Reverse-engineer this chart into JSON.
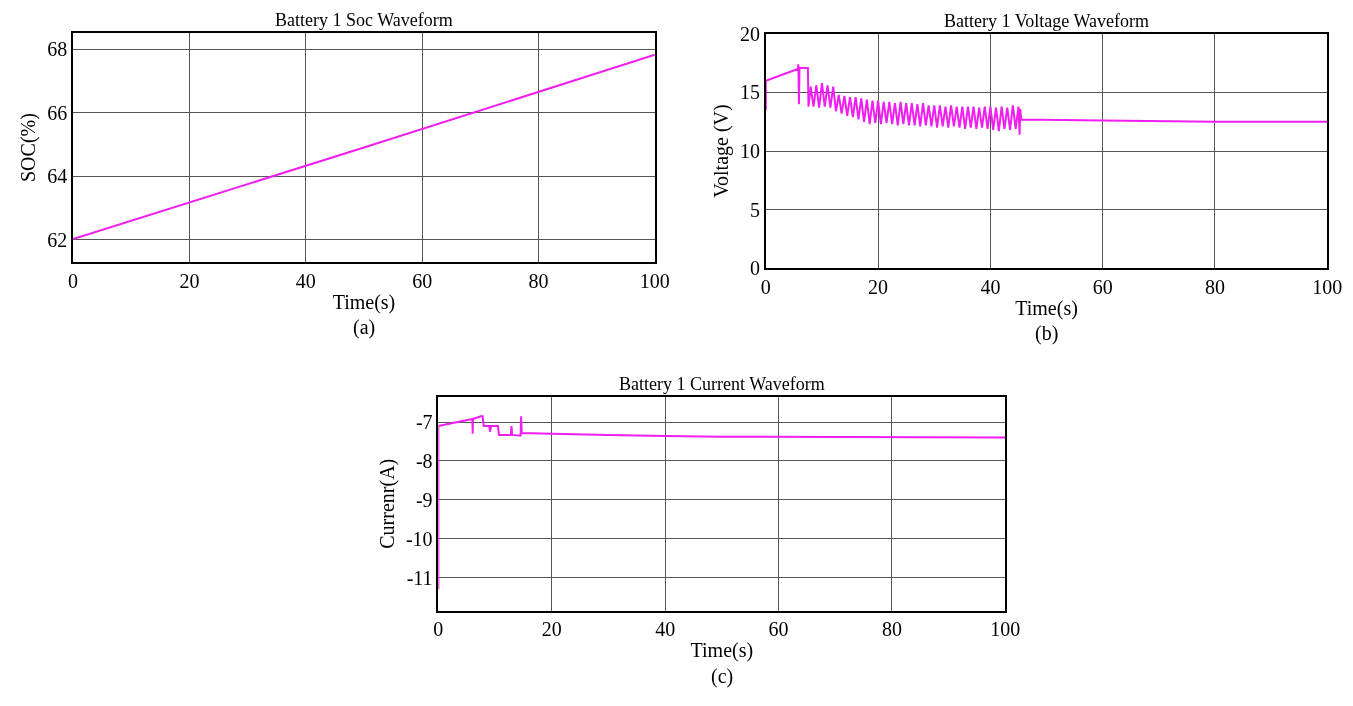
{
  "chart_data": [
    {
      "type": "line",
      "title": "Battery 1 Soc Waveform",
      "xlabel": "Time(s)",
      "ylabel": "SOC(%)",
      "annotations": [
        "(a)"
      ],
      "color": "#f01ef0",
      "x": [
        0,
        50,
        100
      ],
      "values": [
        62.02,
        64.9,
        67.82
      ],
      "xlim": [
        0,
        100
      ],
      "xticks": [
        0,
        20,
        40,
        60,
        80,
        100
      ],
      "ylim": [
        61.3,
        68.5
      ],
      "yticks": [
        62,
        64,
        66,
        68
      ],
      "grid": true
    },
    {
      "type": "line",
      "title": "Battery 1 Voltage Waveform",
      "xlabel": "Time(s)",
      "ylabel": "Voltage (V)",
      "annotations": [
        "(b)"
      ],
      "color": "#f01ef0",
      "x": [
        0,
        0,
        5.7,
        5.8,
        5.9,
        6.0,
        7.5,
        7.6,
        8,
        8.5,
        9,
        9.5,
        10,
        10.5,
        11,
        11.5,
        12,
        12.5,
        13,
        13.5,
        14,
        14.5,
        15,
        15.5,
        16,
        16.5,
        17,
        17.5,
        18,
        18.5,
        19,
        19.5,
        20,
        20.5,
        21,
        21.5,
        22,
        22.5,
        23,
        23.5,
        24,
        24.5,
        25,
        25.5,
        26,
        26.5,
        27,
        27.5,
        28,
        28.5,
        29,
        29.5,
        30,
        30.5,
        31,
        31.5,
        32,
        32.5,
        33,
        33.5,
        34,
        34.5,
        35,
        35.5,
        36,
        36.5,
        37,
        37.5,
        38,
        38.5,
        39,
        39.5,
        40,
        40.5,
        41,
        41.5,
        42,
        42.5,
        43,
        43.5,
        44,
        44.5,
        45,
        45.2,
        45.3,
        45.5,
        60,
        80,
        100
      ],
      "values": [
        13.5,
        16,
        17.0,
        17.4,
        14.0,
        17.1,
        17.1,
        13.8,
        15.5,
        13.8,
        15.6,
        13.7,
        15.8,
        13.8,
        15.6,
        13.7,
        15.5,
        13.4,
        14.8,
        13.2,
        14.7,
        13.0,
        14.6,
        12.9,
        14.6,
        12.7,
        14.5,
        12.5,
        14.4,
        12.3,
        14.3,
        12.4,
        14.3,
        12.3,
        14.2,
        12.4,
        14.2,
        12.3,
        14.1,
        12.2,
        14.2,
        12.3,
        14.1,
        12.2,
        14.1,
        12.2,
        14.0,
        12.1,
        14.1,
        12.2,
        13.9,
        12.1,
        13.9,
        12.0,
        13.9,
        12.1,
        13.8,
        12.0,
        13.9,
        12.1,
        13.8,
        12.0,
        13.8,
        11.9,
        13.8,
        12.0,
        13.8,
        11.9,
        13.7,
        12.0,
        13.8,
        11.9,
        13.8,
        11.8,
        13.7,
        11.7,
        13.8,
        11.9,
        13.7,
        11.8,
        13.9,
        11.9,
        13.8,
        11.4,
        13.6,
        12.7,
        12.6,
        12.5,
        12.5
      ],
      "xlim": [
        0,
        100
      ],
      "xticks": [
        0,
        20,
        40,
        60,
        80,
        100
      ],
      "ylim": [
        0,
        20
      ],
      "yticks": [
        0,
        5,
        10,
        15,
        20
      ],
      "grid": true
    },
    {
      "type": "line",
      "title": "Battery 1 Current Waveform",
      "xlabel": "Time(s)",
      "ylabel": "Currenr(A)",
      "annotations": [
        "(c)"
      ],
      "color": "#f01ef0",
      "x": [
        0,
        0,
        6,
        6.05,
        6.1,
        7.5,
        7.8,
        8,
        9,
        9.1,
        9.3,
        10.5,
        10.7,
        12.8,
        12.9,
        13.0,
        14.5,
        14.6,
        14.7,
        20,
        30,
        40,
        50,
        58,
        100
      ],
      "values": [
        -11.3,
        -7.1,
        -6.92,
        -7.3,
        -6.92,
        -6.85,
        -6.85,
        -7.1,
        -7.1,
        -7.25,
        -7.1,
        -7.1,
        -7.33,
        -7.33,
        -7.1,
        -7.33,
        -7.35,
        -6.85,
        -7.28,
        -7.3,
        -7.33,
        -7.36,
        -7.38,
        -7.38,
        -7.4
      ],
      "xlim": [
        0,
        100
      ],
      "xticks": [
        0,
        20,
        40,
        60,
        80,
        100
      ],
      "ylim": [
        -11.85,
        -6.35
      ],
      "yticks": [
        -11,
        -10,
        -9,
        -8,
        -7
      ],
      "grid": true
    }
  ]
}
